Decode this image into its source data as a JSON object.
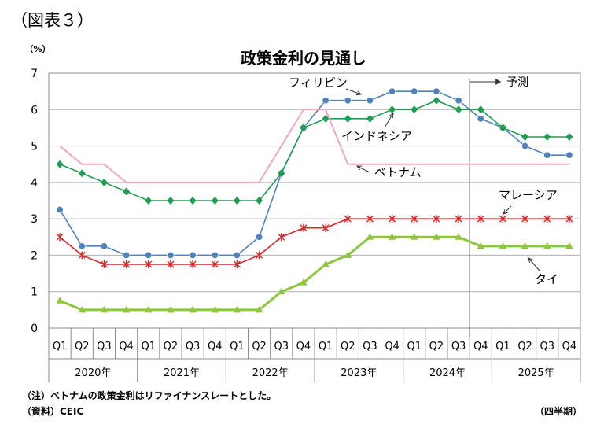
{
  "figure_label": "（図表３）",
  "note": "（注）ベトナムの政策金利はリファイナンスレートとした。",
  "source": "（資料）CEIC",
  "chart_data": {
    "type": "line",
    "title": "政策金利の見通し",
    "ylabel": "（%）",
    "xlabel": "（四半期）",
    "ylim": [
      0,
      7
    ],
    "yticks": [
      0,
      1,
      2,
      3,
      4,
      5,
      6,
      7
    ],
    "grid": true,
    "quarters": [
      "Q1",
      "Q2",
      "Q3",
      "Q4",
      "Q1",
      "Q2",
      "Q3",
      "Q4",
      "Q1",
      "Q2",
      "Q3",
      "Q4",
      "Q1",
      "Q2",
      "Q3",
      "Q4",
      "Q1",
      "Q2",
      "Q3",
      "Q4",
      "Q1",
      "Q2",
      "Q3",
      "Q4"
    ],
    "years": [
      "2020年",
      "2021年",
      "2022年",
      "2023年",
      "2024年",
      "2025年"
    ],
    "forecast_label": "予測",
    "forecast_start_index": 19,
    "series": [
      {
        "name": "フィリピン",
        "color": "#4F81BD",
        "marker": "circle",
        "values": [
          3.25,
          2.25,
          2.25,
          2.0,
          2.0,
          2.0,
          2.0,
          2.0,
          2.0,
          2.5,
          4.25,
          5.5,
          6.25,
          6.25,
          6.25,
          6.5,
          6.5,
          6.5,
          6.25,
          5.75,
          5.5,
          5.0,
          4.75,
          4.75
        ]
      },
      {
        "name": "インドネシア",
        "color": "#1E9E50",
        "marker": "diamond",
        "values": [
          4.5,
          4.25,
          4.0,
          3.75,
          3.5,
          3.5,
          3.5,
          3.5,
          3.5,
          3.5,
          4.25,
          5.5,
          5.75,
          5.75,
          5.75,
          6.0,
          6.0,
          6.25,
          6.0,
          6.0,
          5.5,
          5.25,
          5.25,
          5.25
        ]
      },
      {
        "name": "ベトナム",
        "color": "#F4A6C0",
        "marker": "none",
        "values": [
          5.0,
          4.5,
          4.5,
          4.0,
          4.0,
          4.0,
          4.0,
          4.0,
          4.0,
          4.0,
          5.0,
          6.0,
          6.0,
          4.5,
          4.5,
          4.5,
          4.5,
          4.5,
          4.5,
          4.5,
          4.5,
          4.5,
          4.5,
          4.5
        ]
      },
      {
        "name": "マレーシア",
        "color": "#D62728",
        "marker": "star",
        "values": [
          2.5,
          2.0,
          1.75,
          1.75,
          1.75,
          1.75,
          1.75,
          1.75,
          1.75,
          2.0,
          2.5,
          2.75,
          2.75,
          3.0,
          3.0,
          3.0,
          3.0,
          3.0,
          3.0,
          3.0,
          3.0,
          3.0,
          3.0,
          3.0
        ]
      },
      {
        "name": "タイ",
        "color": "#8DC63F",
        "marker": "triangle",
        "values": [
          0.75,
          0.5,
          0.5,
          0.5,
          0.5,
          0.5,
          0.5,
          0.5,
          0.5,
          0.5,
          1.0,
          1.25,
          1.75,
          2.0,
          2.5,
          2.5,
          2.5,
          2.5,
          2.5,
          2.25,
          2.25,
          2.25,
          2.25,
          2.25
        ]
      }
    ]
  }
}
